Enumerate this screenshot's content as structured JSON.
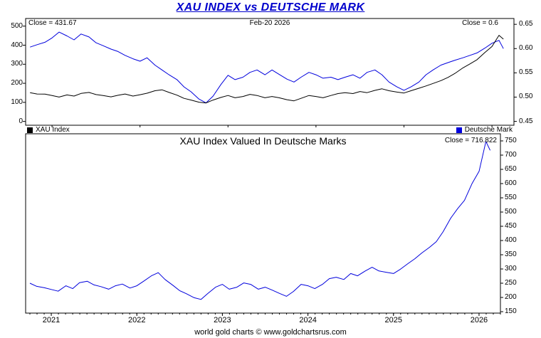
{
  "page": {
    "footer": "world gold charts © www.goldchartsrus.com"
  },
  "colors": {
    "title_blue": "#0000cc",
    "line_blue": "#0000dd",
    "line_black": "#000000"
  },
  "chart_data": [
    {
      "type": "line",
      "title": "XAU INDEX vs DEUTSCHE MARK",
      "annotations": {
        "close_left": "Close = 431.67",
        "date_center": "Feb-20 2026",
        "close_right": "Close = 0.6"
      },
      "grid": false,
      "legend_position": "bottom",
      "xlim": [
        2020.7,
        2026.25
      ],
      "left_axis": {
        "ylim": [
          0,
          500
        ],
        "ticks": [
          0,
          100,
          200,
          300,
          400,
          500
        ]
      },
      "right_axis": {
        "ylim": [
          0.45,
          0.65
        ],
        "ticks": [
          0.45,
          0.5,
          0.55,
          0.6,
          0.65
        ]
      },
      "x_years": [
        2020.75,
        2020.83,
        2020.92,
        2021.0,
        2021.08,
        2021.17,
        2021.25,
        2021.33,
        2021.42,
        2021.5,
        2021.58,
        2021.67,
        2021.75,
        2021.83,
        2021.92,
        2022.0,
        2022.08,
        2022.17,
        2022.25,
        2022.33,
        2022.42,
        2022.5,
        2022.58,
        2022.67,
        2022.75,
        2022.83,
        2022.92,
        2023.0,
        2023.08,
        2023.17,
        2023.25,
        2023.33,
        2023.42,
        2023.5,
        2023.58,
        2023.67,
        2023.75,
        2023.83,
        2023.92,
        2024.0,
        2024.08,
        2024.17,
        2024.25,
        2024.33,
        2024.42,
        2024.5,
        2024.58,
        2024.67,
        2024.75,
        2024.83,
        2024.92,
        2025.0,
        2025.08,
        2025.17,
        2025.25,
        2025.33,
        2025.42,
        2025.5,
        2025.58,
        2025.67,
        2025.75,
        2025.83,
        2025.92,
        2026.0,
        2026.08,
        2026.13
      ],
      "series": [
        {
          "name": "XAU Index",
          "color": "#000000",
          "axis": "left",
          "close": 431.67,
          "values": [
            151,
            144,
            143,
            136,
            128,
            139,
            133,
            147,
            152,
            141,
            136,
            129,
            137,
            144,
            133,
            140,
            148,
            161,
            166,
            152,
            138,
            121,
            112,
            101,
            97,
            112,
            126,
            136,
            124,
            131,
            142,
            136,
            124,
            131,
            124,
            114,
            108,
            121,
            136,
            131,
            124,
            136,
            146,
            151,
            146,
            157,
            151,
            163,
            171,
            161,
            154,
            149,
            161,
            174,
            186,
            199,
            214,
            231,
            252,
            281,
            302,
            324,
            362,
            393,
            452,
            431.67
          ]
        },
        {
          "name": "Deutsche Mark",
          "color": "#0000dd",
          "axis": "right",
          "close": 0.6,
          "values": [
            0.603,
            0.608,
            0.613,
            0.622,
            0.634,
            0.626,
            0.618,
            0.63,
            0.624,
            0.612,
            0.606,
            0.599,
            0.594,
            0.586,
            0.579,
            0.574,
            0.581,
            0.566,
            0.556,
            0.546,
            0.536,
            0.521,
            0.511,
            0.496,
            0.488,
            0.502,
            0.526,
            0.545,
            0.536,
            0.541,
            0.551,
            0.556,
            0.546,
            0.556,
            0.547,
            0.537,
            0.531,
            0.541,
            0.551,
            0.546,
            0.539,
            0.541,
            0.536,
            0.541,
            0.546,
            0.539,
            0.551,
            0.556,
            0.546,
            0.531,
            0.521,
            0.514,
            0.521,
            0.531,
            0.546,
            0.556,
            0.566,
            0.571,
            0.576,
            0.581,
            0.586,
            0.591,
            0.601,
            0.611,
            0.617,
            0.6
          ]
        }
      ]
    },
    {
      "type": "line",
      "title": "XAU Index Valued In Deutsche Marks",
      "annotations": {
        "close_right": "Close = 716.822"
      },
      "grid": false,
      "xlim": [
        2020.7,
        2026.25
      ],
      "xticks": [
        2021,
        2022,
        2023,
        2024,
        2025,
        2026
      ],
      "right_axis": {
        "ylim": [
          150,
          750
        ],
        "ticks": [
          150,
          200,
          250,
          300,
          350,
          400,
          450,
          500,
          550,
          600,
          650,
          700,
          750
        ]
      },
      "x_years": [
        2020.75,
        2020.83,
        2020.92,
        2021.0,
        2021.08,
        2021.17,
        2021.25,
        2021.33,
        2021.42,
        2021.5,
        2021.58,
        2021.67,
        2021.75,
        2021.83,
        2021.92,
        2022.0,
        2022.08,
        2022.17,
        2022.25,
        2022.33,
        2022.42,
        2022.5,
        2022.58,
        2022.67,
        2022.75,
        2022.83,
        2022.92,
        2023.0,
        2023.08,
        2023.17,
        2023.25,
        2023.33,
        2023.42,
        2023.5,
        2023.58,
        2023.67,
        2023.75,
        2023.83,
        2023.92,
        2024.0,
        2024.08,
        2024.17,
        2024.25,
        2024.33,
        2024.42,
        2024.5,
        2024.58,
        2024.67,
        2024.75,
        2024.83,
        2024.92,
        2025.0,
        2025.08,
        2025.17,
        2025.25,
        2025.33,
        2025.42,
        2025.5,
        2025.58,
        2025.67,
        2025.75,
        2025.83,
        2025.92,
        2026.0,
        2026.08,
        2026.13
      ],
      "series": [
        {
          "name": "XAU Index in Deutsche Marks",
          "color": "#0000dd",
          "axis": "right",
          "close": 716.822,
          "values": [
            250,
            239,
            234,
            228,
            222,
            241,
            231,
            252,
            257,
            244,
            238,
            229,
            241,
            247,
            233,
            241,
            257,
            276,
            287,
            263,
            243,
            224,
            213,
            199,
            193,
            214,
            236,
            246,
            229,
            236,
            251,
            246,
            229,
            236,
            226,
            214,
            204,
            221,
            246,
            241,
            231,
            246,
            266,
            271,
            263,
            284,
            276,
            293,
            306,
            293,
            288,
            284,
            299,
            319,
            336,
            356,
            376,
            396,
            431,
            479,
            512,
            541,
            601,
            643,
            748,
            716.822
          ]
        }
      ]
    }
  ]
}
